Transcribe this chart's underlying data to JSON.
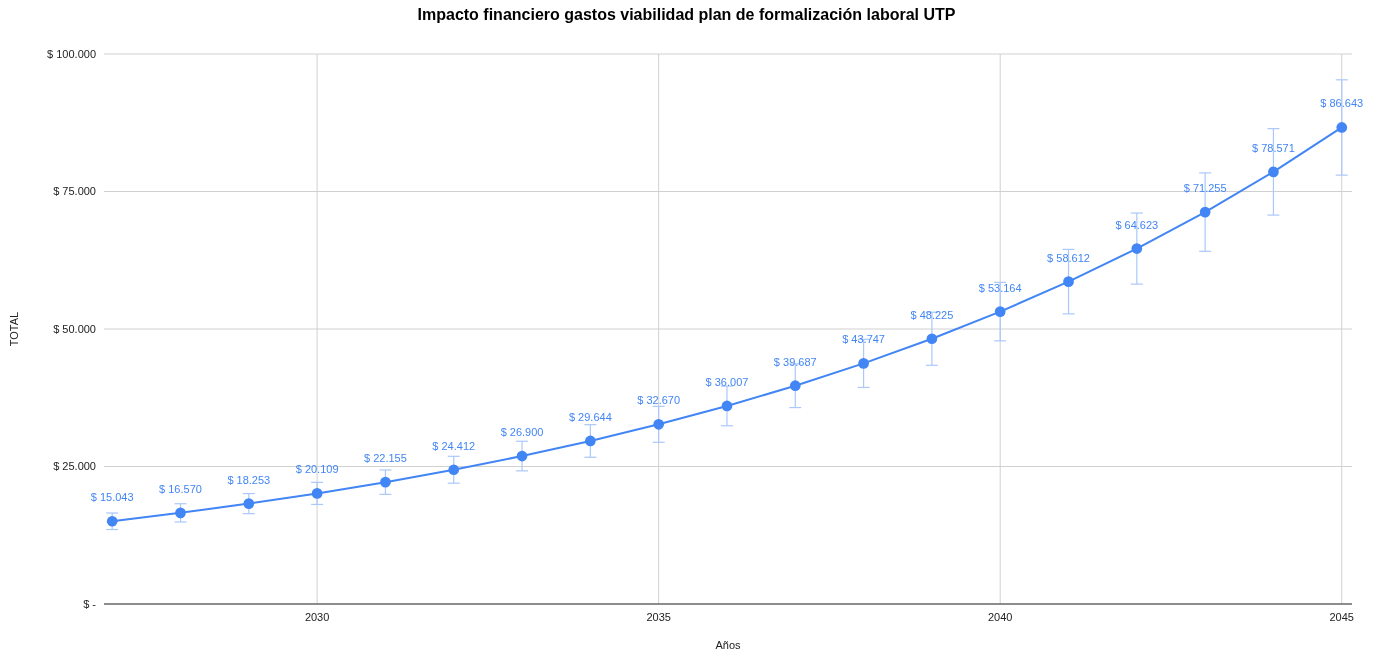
{
  "chart_data": {
    "type": "line",
    "title": "Impacto financiero gastos  viabilidad plan de formalización laboral UTP",
    "xlabel": "Años",
    "ylabel": "TOTAL",
    "x": [
      2027,
      2028,
      2029,
      2030,
      2031,
      2032,
      2033,
      2034,
      2035,
      2036,
      2037,
      2038,
      2039,
      2040,
      2041,
      2042,
      2043,
      2044,
      2045
    ],
    "series": [
      {
        "color": "#4285f4",
        "values": [
          15043,
          16570,
          18253,
          20109,
          22155,
          24412,
          26900,
          29644,
          32670,
          36007,
          39687,
          43747,
          48225,
          53164,
          58612,
          64623,
          71255,
          78571,
          86643
        ],
        "errors": [
          1504,
          1657,
          1825,
          2011,
          2216,
          2441,
          2690,
          2964,
          3267,
          3601,
          3969,
          4375,
          4823,
          5316,
          5861,
          6462,
          7126,
          7857,
          8664
        ],
        "value_labels": [
          "$ 15.043",
          "$ 16.570",
          "$ 18.253",
          "$ 20.109",
          "$ 22.155",
          "$ 24.412",
          "$ 26.900",
          "$ 29.644",
          "$ 32.670",
          "$ 36.007",
          "$ 39.687",
          "$ 43.747",
          "$ 48.225",
          "$ 53.164",
          "$ 58.612",
          "$ 64.623",
          "$ 71.255",
          "$ 78.571",
          "$ 86.643"
        ]
      }
    ],
    "xlim": [
      2026.88,
      2045.15
    ],
    "xticks": [
      2030,
      2035,
      2040,
      2045
    ],
    "ylim": [
      0,
      100000
    ],
    "yticks": [
      {
        "value": 0,
        "label": "$ -"
      },
      {
        "value": 25000,
        "label": "$ 25.000"
      },
      {
        "value": 50000,
        "label": "$ 50.000"
      },
      {
        "value": 75000,
        "label": "$ 75.000"
      },
      {
        "value": 100000,
        "label": "$ 100.000"
      }
    ],
    "grid": true,
    "marker": "circle",
    "line_style": "solid"
  }
}
